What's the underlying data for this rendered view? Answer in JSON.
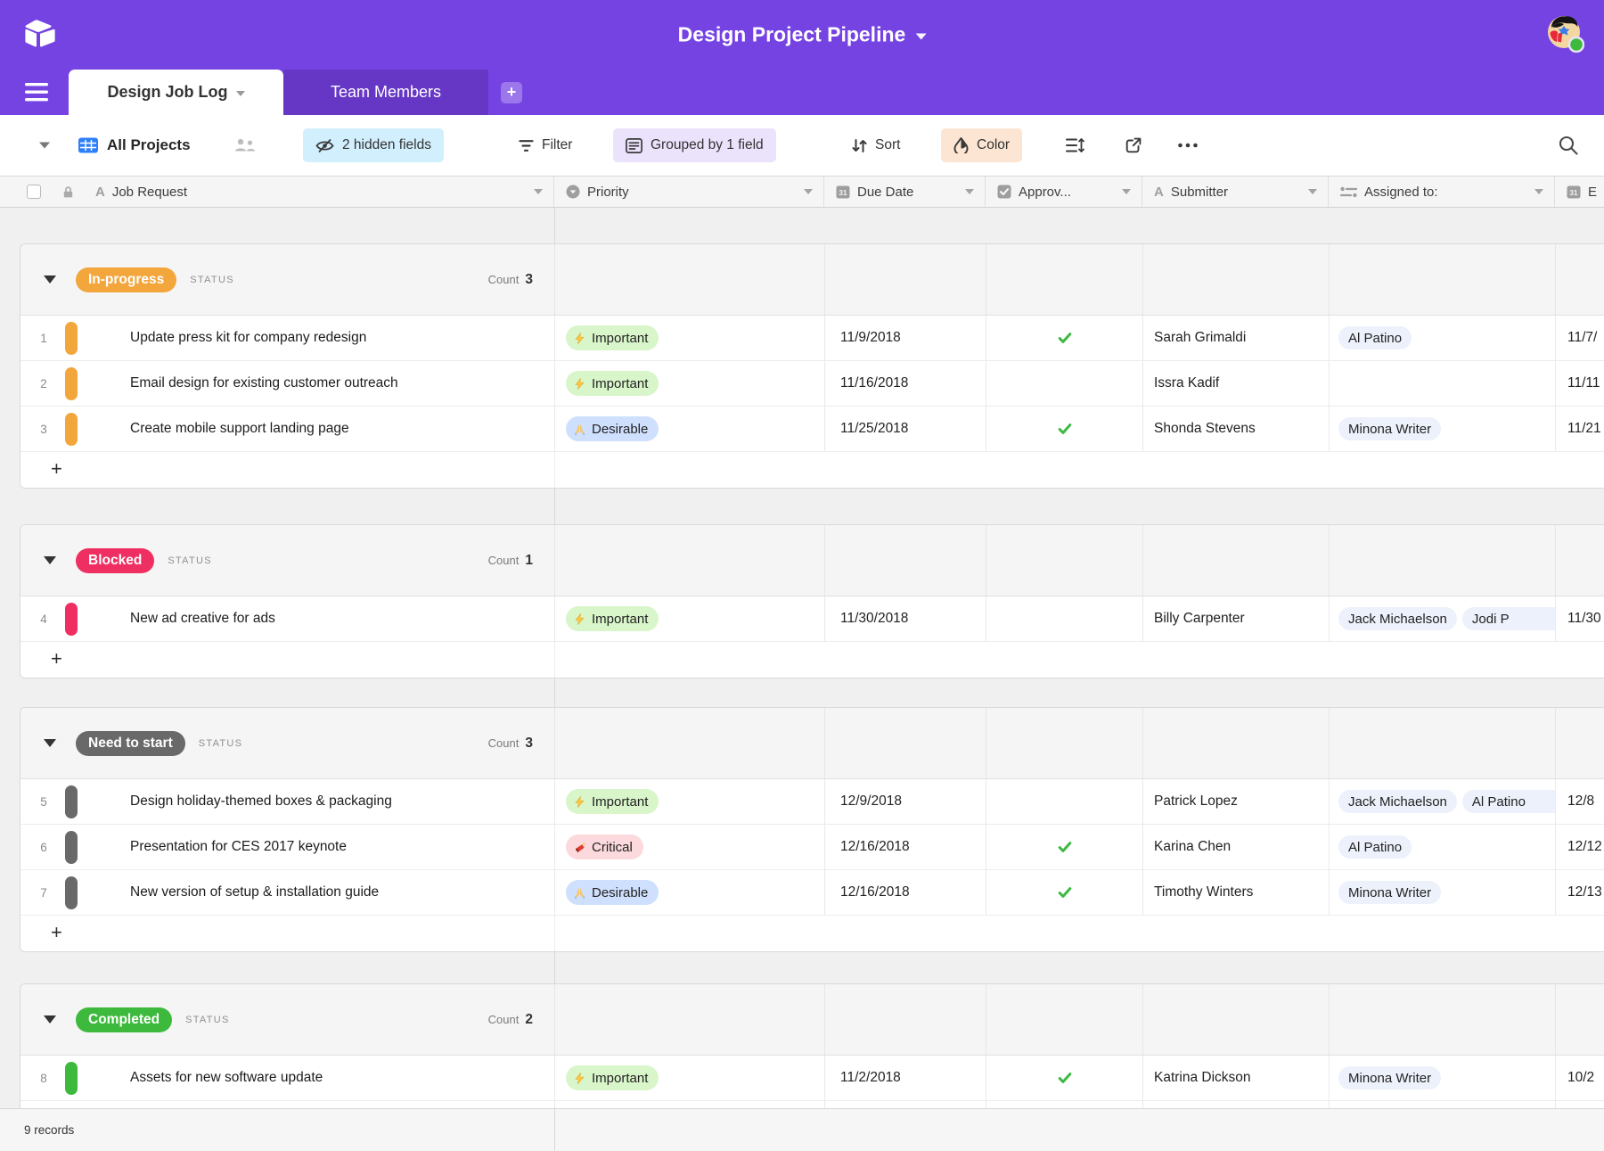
{
  "topbar": {
    "title": "Design Project Pipeline"
  },
  "tabs": {
    "items": [
      {
        "label": "Design Job Log",
        "active": true
      },
      {
        "label": "Team Members",
        "active": false
      }
    ]
  },
  "toolbar": {
    "view_name": "All Projects",
    "hidden_fields_label": "2 hidden fields",
    "filter_label": "Filter",
    "grouped_label": "Grouped by 1 field",
    "sort_label": "Sort",
    "color_label": "Color",
    "hidden_fields_bg": "#D2EFFE",
    "grouped_bg": "#EBE2FC",
    "color_bg": "#FCE5D2"
  },
  "table": {
    "columns": {
      "job": "Job Request",
      "priority": "Priority",
      "due": "Due Date",
      "approved": "Approv...",
      "submitter": "Submitter",
      "assigned": "Assigned to:",
      "end": "E"
    },
    "group_field_label": "STATUS",
    "count_label": "Count",
    "add_row_label": "+",
    "priority_styles": {
      "important": {
        "bg": "#D8F6C9"
      },
      "desirable": {
        "bg": "#CFE0FE"
      },
      "critical": {
        "bg": "#FBD9DC"
      }
    },
    "groups": [
      {
        "status": "In-progress",
        "color": "#F3A63B",
        "count": "3",
        "rows": [
          {
            "num": "1",
            "job": "Update press kit for company redesign",
            "priority": {
              "type": "important",
              "label": "Important"
            },
            "due": "11/9/2018",
            "approved": true,
            "submitter": "Sarah Grimaldi",
            "assigned": [
              "Al Patino"
            ],
            "end": "11/7/"
          },
          {
            "num": "2",
            "job": "Email design for existing customer outreach",
            "priority": {
              "type": "important",
              "label": "Important"
            },
            "due": "11/16/2018",
            "approved": false,
            "submitter": "Issra Kadif",
            "assigned": [],
            "end": "11/11"
          },
          {
            "num": "3",
            "job": "Create mobile support landing page",
            "priority": {
              "type": "desirable",
              "label": "Desirable"
            },
            "due": "11/25/2018",
            "approved": true,
            "submitter": "Shonda Stevens",
            "assigned": [
              "Minona Writer"
            ],
            "end": "11/21"
          }
        ]
      },
      {
        "status": "Blocked",
        "color": "#EF2F61",
        "count": "1",
        "rows": [
          {
            "num": "4",
            "job": "New ad creative for ads",
            "priority": {
              "type": "important",
              "label": "Important"
            },
            "due": "11/30/2018",
            "approved": false,
            "submitter": "Billy Carpenter",
            "assigned": [
              "Jack Michaelson",
              "Jodi P"
            ],
            "assigned_clipped": true,
            "end": "11/30"
          }
        ]
      },
      {
        "status": "Need to start",
        "color": "#696969",
        "count": "3",
        "rows": [
          {
            "num": "5",
            "job": "Design holiday-themed boxes & packaging",
            "priority": {
              "type": "important",
              "label": "Important"
            },
            "due": "12/9/2018",
            "approved": false,
            "submitter": "Patrick Lopez",
            "assigned": [
              "Jack Michaelson",
              "Al Patino"
            ],
            "assigned_clipped": true,
            "end": "12/8"
          },
          {
            "num": "6",
            "job": "Presentation for CES 2017 keynote",
            "priority": {
              "type": "critical",
              "label": "Critical"
            },
            "due": "12/16/2018",
            "approved": true,
            "submitter": "Karina Chen",
            "assigned": [
              "Al Patino"
            ],
            "end": "12/12"
          },
          {
            "num": "7",
            "job": "New version of setup & installation guide",
            "priority": {
              "type": "desirable",
              "label": "Desirable"
            },
            "due": "12/16/2018",
            "approved": true,
            "submitter": "Timothy Winters",
            "assigned": [
              "Minona Writer"
            ],
            "end": "12/13"
          }
        ]
      },
      {
        "status": "Completed",
        "color": "#3DBA3D",
        "count": "2",
        "rows": [
          {
            "num": "8",
            "job": "Assets for new software update",
            "priority": {
              "type": "important",
              "label": "Important"
            },
            "due": "11/2/2018",
            "approved": true,
            "submitter": "Katrina Dickson",
            "assigned": [
              "Minona Writer"
            ],
            "end": "10/2"
          },
          {
            "partial": true,
            "num": "",
            "job": "",
            "priority": null,
            "due": "",
            "approved": false,
            "submitter": "",
            "assigned": [],
            "end": ""
          }
        ]
      }
    ]
  },
  "footer": {
    "records": "9 records"
  },
  "colors": {
    "brand_purple": "#7643E3",
    "tab_inactive": "#6637C5",
    "check_green": "#3DB944",
    "collab_pill_bg": "#EDF1FB",
    "grid_view_blue": "#2D7FF9"
  }
}
